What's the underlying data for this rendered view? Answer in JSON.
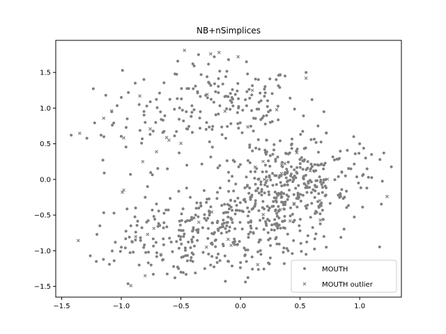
{
  "chart_data": {
    "type": "scatter",
    "title": "NB+nSimplices",
    "xlabel": "",
    "ylabel": "",
    "xlim": [
      -1.55,
      1.35
    ],
    "ylim": [
      -1.65,
      1.95
    ],
    "xticks": [
      -1.5,
      -1.0,
      -0.5,
      0.0,
      0.5,
      1.0
    ],
    "xtick_labels": [
      "−1.5",
      "−1.0",
      "−0.5",
      "0.0",
      "0.5",
      "1.0"
    ],
    "yticks": [
      -1.5,
      -1.0,
      -0.5,
      0.0,
      0.5,
      1.0,
      1.5
    ],
    "yticks_labels": [
      "−1.5",
      "−1.0",
      "−0.5",
      "0.0",
      "0.5",
      "1.0",
      "1.5"
    ],
    "grid": false,
    "legend_position": "lower-right",
    "colors": {
      "points": "#808080",
      "axes": "#000000",
      "legend_border": "#cccccc"
    },
    "series": [
      {
        "name": "MOUTH",
        "marker": "circle",
        "clusters": [
          {
            "cx": -0.15,
            "cy": 1.05,
            "sx": 0.32,
            "sy": 0.28,
            "n": 150
          },
          {
            "cx": 0.35,
            "cy": -0.25,
            "sx": 0.3,
            "sy": 0.35,
            "n": 260
          },
          {
            "cx": -0.15,
            "cy": -0.75,
            "sx": 0.35,
            "sy": 0.28,
            "n": 200
          },
          {
            "cx": 0.55,
            "cy": 0.15,
            "sx": 0.3,
            "sy": 0.28,
            "n": 120
          },
          {
            "cx": -0.75,
            "cy": -0.85,
            "sx": 0.25,
            "sy": 0.25,
            "n": 60
          },
          {
            "cx": -0.9,
            "cy": 0.6,
            "sx": 0.2,
            "sy": 0.35,
            "n": 30
          }
        ],
        "points": [
          [
            -1.42,
            0.62
          ],
          [
            -1.26,
            -1.07
          ],
          [
            -1.15,
            -1.12
          ],
          [
            -1.1,
            -1.19
          ],
          [
            -1.06,
            -1.14
          ],
          [
            -1.21,
            -1.15
          ],
          [
            -1.17,
            0.62
          ],
          [
            -1.13,
            1.18
          ],
          [
            -1.08,
            0.95
          ],
          [
            -0.99,
            1.53
          ],
          [
            -1.0,
            1.15
          ],
          [
            -0.95,
            0.85
          ],
          [
            -0.85,
            1.05
          ],
          [
            -0.8,
            0.8
          ],
          [
            -0.55,
            1.48
          ],
          [
            -0.4,
            1.62
          ],
          [
            -0.22,
            1.72
          ],
          [
            -0.1,
            1.68
          ],
          [
            0.05,
            1.65
          ],
          [
            0.15,
            1.4
          ],
          [
            0.3,
            1.4
          ],
          [
            0.55,
            1.5
          ],
          [
            0.6,
            1.12
          ],
          [
            0.7,
            0.95
          ],
          [
            0.65,
            0.75
          ],
          [
            0.72,
            0.65
          ],
          [
            0.95,
            0.6
          ],
          [
            1.0,
            0.5
          ],
          [
            1.05,
            0.3
          ],
          [
            1.1,
            0.35
          ],
          [
            1.17,
            0.28
          ],
          [
            1.03,
            0.07
          ],
          [
            0.99,
            -0.05
          ],
          [
            1.06,
            -0.12
          ],
          [
            0.85,
            0.1
          ],
          [
            0.82,
            -0.22
          ],
          [
            0.7,
            -0.8
          ],
          [
            0.72,
            -0.95
          ],
          [
            0.55,
            -1.05
          ],
          [
            0.4,
            -1.0
          ],
          [
            0.25,
            -1.1
          ],
          [
            0.05,
            -1.15
          ],
          [
            -0.1,
            -1.15
          ],
          [
            -0.25,
            -1.2
          ],
          [
            -0.3,
            -1.25
          ],
          [
            -0.4,
            -1.15
          ],
          [
            -0.52,
            -1.25
          ],
          [
            -0.5,
            -1.3
          ],
          [
            -0.55,
            -1.38
          ],
          [
            -0.75,
            -1.2
          ],
          [
            -0.85,
            -1.2
          ],
          [
            -0.9,
            -1.02
          ],
          [
            -1.0,
            -0.95
          ],
          [
            -1.05,
            -0.88
          ],
          [
            -1.18,
            -0.65
          ],
          [
            -0.92,
            -0.65
          ],
          [
            -0.88,
            -0.4
          ],
          [
            -0.8,
            -0.25
          ],
          [
            -0.78,
            -0.1
          ],
          [
            -0.45,
            0.2
          ],
          [
            0.25,
            0.8
          ],
          [
            0.22,
            0.55
          ],
          [
            0.1,
            0.4
          ],
          [
            -0.05,
            0.25
          ],
          [
            -0.1,
            0.1
          ]
        ]
      },
      {
        "name": "MOUTH outlier",
        "marker": "x",
        "points": [
          [
            -0.47,
            1.81
          ],
          [
            -0.25,
            1.76
          ],
          [
            -0.18,
            1.78
          ],
          [
            -0.02,
            1.72
          ],
          [
            0.55,
            1.42
          ],
          [
            1.23,
            -0.24
          ],
          [
            -0.92,
            -1.49
          ],
          [
            -0.8,
            -1.35
          ],
          [
            -0.98,
            -0.15
          ],
          [
            -0.82,
            0.25
          ],
          [
            -0.6,
            0.55
          ],
          [
            0.1,
            1.25
          ],
          [
            0.2,
            0.0
          ],
          [
            0.45,
            -0.35
          ],
          [
            -0.35,
            -0.6
          ]
        ]
      }
    ]
  }
}
